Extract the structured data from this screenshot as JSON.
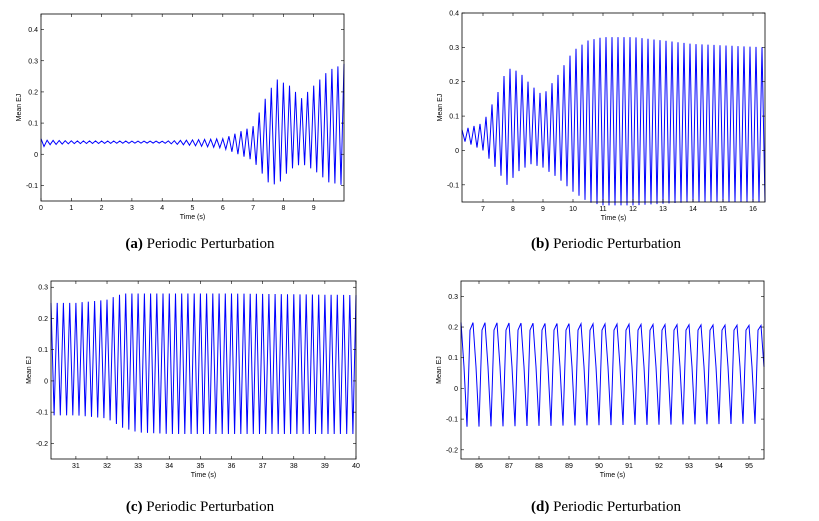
{
  "chart_data": [
    {
      "type": "line",
      "panel_label": "(a)",
      "caption": "Periodic Perturbation",
      "xlabel": "Time (s)",
      "ylabel": "Mean EJ",
      "xlim": [
        0,
        10
      ],
      "ylim": [
        -0.15,
        0.45
      ],
      "xticks": [
        0,
        1,
        2,
        3,
        4,
        5,
        6,
        7,
        8,
        9
      ],
      "yticks": [
        -0.1,
        0,
        0.1,
        0.2,
        0.3,
        0.4
      ],
      "series": [
        {
          "name": "Mean EJ",
          "color": "#0000ff",
          "oscillation_cycles_per_s": 5,
          "upper_envelope": {
            "t": [
              0,
              0.2,
              1,
              4,
              6,
              7,
              7.5,
              7.8,
              8.2,
              8.6,
              9,
              9.5,
              10
            ],
            "y": [
              0.05,
              0.045,
              0.043,
              0.042,
              0.05,
              0.09,
              0.2,
              0.24,
              0.22,
              0.18,
              0.22,
              0.27,
              0.29
            ]
          },
          "lower_envelope": {
            "t": [
              0,
              0.2,
              1,
              4,
              6,
              7,
              7.5,
              7.8,
              8.2,
              8.6,
              9,
              9.5,
              10
            ],
            "y": [
              0.02,
              0.03,
              0.034,
              0.036,
              0.02,
              -0.02,
              -0.09,
              -0.1,
              -0.05,
              -0.03,
              -0.05,
              -0.09,
              -0.1
            ]
          }
        }
      ]
    },
    {
      "type": "line",
      "panel_label": "(b)",
      "caption": "Periodic Perturbation",
      "xlabel": "Time (s)",
      "ylabel": "Mean EJ",
      "xlim": [
        6.3,
        16.4
      ],
      "ylim": [
        -0.15,
        0.4
      ],
      "xticks": [
        7,
        8,
        9,
        10,
        11,
        12,
        13,
        14,
        15,
        16
      ],
      "yticks": [
        -0.1,
        0,
        0.1,
        0.2,
        0.3,
        0.4
      ],
      "series": [
        {
          "name": "Mean EJ",
          "color": "#0000ff",
          "oscillation_cycles_per_s": 5,
          "upper_envelope": {
            "t": [
              6.3,
              7,
              7.5,
              7.8,
              8.2,
              8.6,
              9,
              9.5,
              10,
              10.5,
              11,
              12,
              14,
              16.4
            ],
            "y": [
              0.06,
              0.08,
              0.17,
              0.24,
              0.23,
              0.19,
              0.16,
              0.22,
              0.29,
              0.32,
              0.33,
              0.33,
              0.31,
              0.3
            ]
          },
          "lower_envelope": {
            "t": [
              6.3,
              7,
              7.5,
              7.8,
              8.2,
              8.6,
              9,
              9.5,
              10,
              10.5,
              11,
              12,
              14,
              16.4
            ],
            "y": [
              0.03,
              0.0,
              -0.06,
              -0.1,
              -0.06,
              -0.04,
              -0.05,
              -0.08,
              -0.12,
              -0.15,
              -0.16,
              -0.16,
              -0.15,
              -0.15
            ]
          }
        }
      ]
    },
    {
      "type": "line",
      "panel_label": "(c)",
      "caption": "Periodic Perturbation",
      "xlabel": "Time (s)",
      "ylabel": "Mean EJ",
      "xlim": [
        30.2,
        40
      ],
      "ylim": [
        -0.25,
        0.32
      ],
      "xticks": [
        31,
        32,
        33,
        34,
        35,
        36,
        37,
        38,
        39,
        40
      ],
      "yticks": [
        -0.2,
        -0.1,
        0,
        0.1,
        0.2,
        0.3
      ],
      "series": [
        {
          "name": "Mean EJ",
          "color": "#0000ff",
          "oscillation_cycles_per_s": 5,
          "upper_envelope": {
            "t": [
              30.2,
              31,
              32,
              32.5,
              33,
              34,
              36,
              40
            ],
            "y": [
              0.25,
              0.25,
              0.26,
              0.28,
              0.28,
              0.28,
              0.28,
              0.275
            ]
          },
          "lower_envelope": {
            "t": [
              30.2,
              31,
              32,
              32.5,
              33,
              34,
              36,
              40
            ],
            "y": [
              -0.11,
              -0.11,
              -0.12,
              -0.15,
              -0.165,
              -0.17,
              -0.17,
              -0.17
            ]
          }
        }
      ]
    },
    {
      "type": "line",
      "panel_label": "(d)",
      "caption": "Periodic Perturbation",
      "xlabel": "Time (s)",
      "ylabel": "Mean EJ",
      "xlim": [
        85.4,
        95.5
      ],
      "ylim": [
        -0.23,
        0.35
      ],
      "xticks": [
        86,
        87,
        88,
        89,
        90,
        91,
        92,
        93,
        94,
        95
      ],
      "yticks": [
        -0.2,
        -0.1,
        0,
        0.1,
        0.2,
        0.3
      ],
      "series": [
        {
          "name": "Mean EJ",
          "color": "#0000ff",
          "oscillation_cycles_per_s": 5,
          "upper_envelope": {
            "t": [
              85.4,
              90,
              95.5
            ],
            "y": [
              0.215,
              0.21,
              0.205
            ]
          },
          "lower_envelope": {
            "t": [
              85.4,
              90,
              95.5
            ],
            "y": [
              -0.125,
              -0.12,
              -0.115
            ]
          },
          "inner_band": [
            0.07,
            0.19
          ]
        }
      ]
    }
  ]
}
